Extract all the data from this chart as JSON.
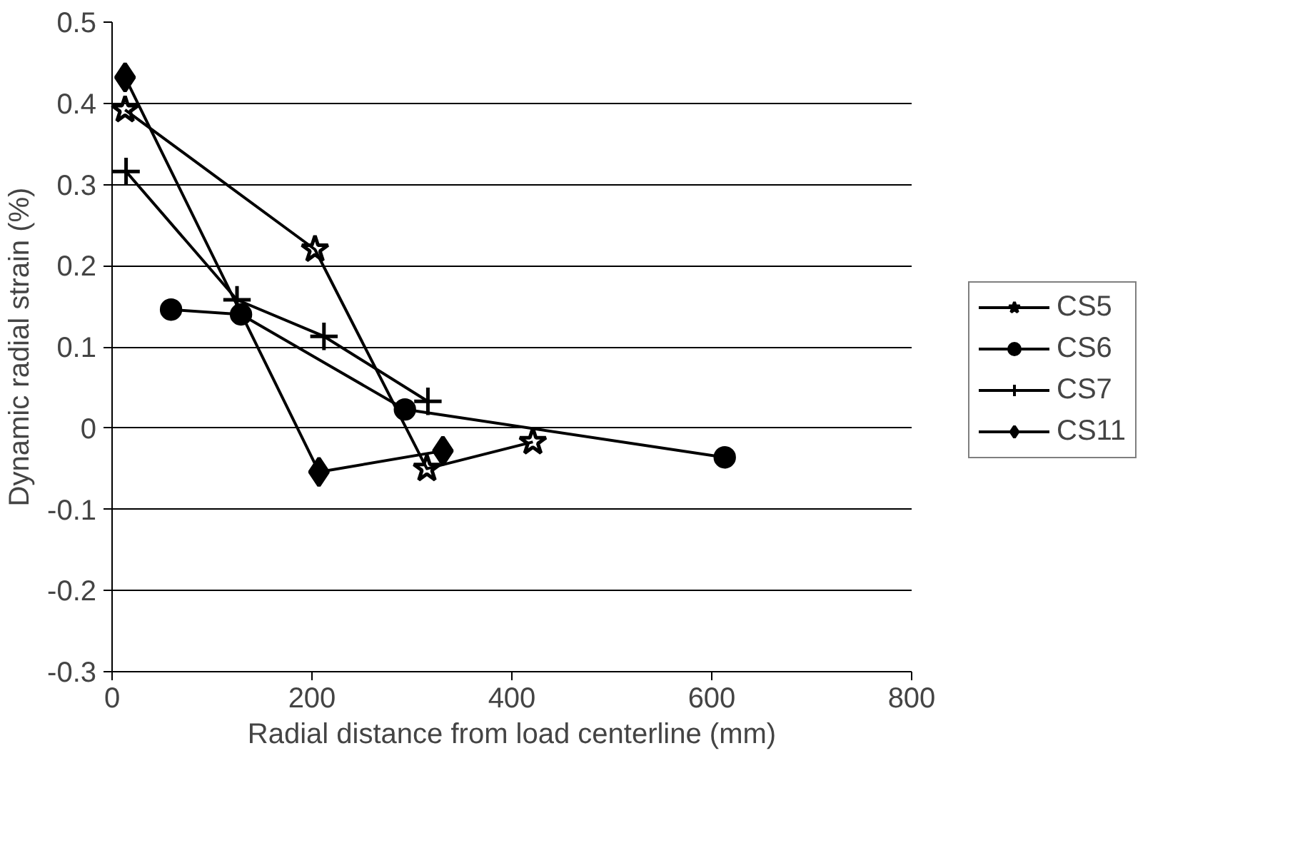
{
  "chart_data": {
    "type": "line",
    "xlabel": "Radial distance from load centerline (mm)",
    "ylabel": "Dynamic radial strain (%)",
    "xlim": [
      0,
      800
    ],
    "xticks": [
      0,
      200,
      400,
      600,
      800
    ],
    "ylim": [
      -0.3,
      0.5
    ],
    "yticks": [
      -0.3,
      -0.2,
      -0.1,
      0,
      0.1,
      0.2,
      0.3,
      0.4,
      0.5
    ],
    "grid": "y",
    "legend": "right",
    "line_style": "solid",
    "series": [
      {
        "name": "CS5",
        "color": "#000000",
        "marker": "star",
        "x": [
          13,
          203,
          315,
          421
        ],
        "values": [
          0.392,
          0.22,
          -0.05,
          -0.017
        ]
      },
      {
        "name": "CS6",
        "color": "#000000",
        "marker": "circle",
        "x": [
          59,
          129,
          293,
          613
        ],
        "values": [
          0.146,
          0.14,
          0.023,
          -0.036
        ]
      },
      {
        "name": "CS7",
        "color": "#000000",
        "marker": "cross",
        "x": [
          14,
          125,
          212,
          316
        ],
        "values": [
          0.316,
          0.158,
          0.113,
          0.033
        ]
      },
      {
        "name": "CS11",
        "color": "#000000",
        "marker": "diamond",
        "x": [
          13,
          207,
          331
        ],
        "values": [
          0.432,
          -0.054,
          -0.028
        ]
      }
    ]
  }
}
